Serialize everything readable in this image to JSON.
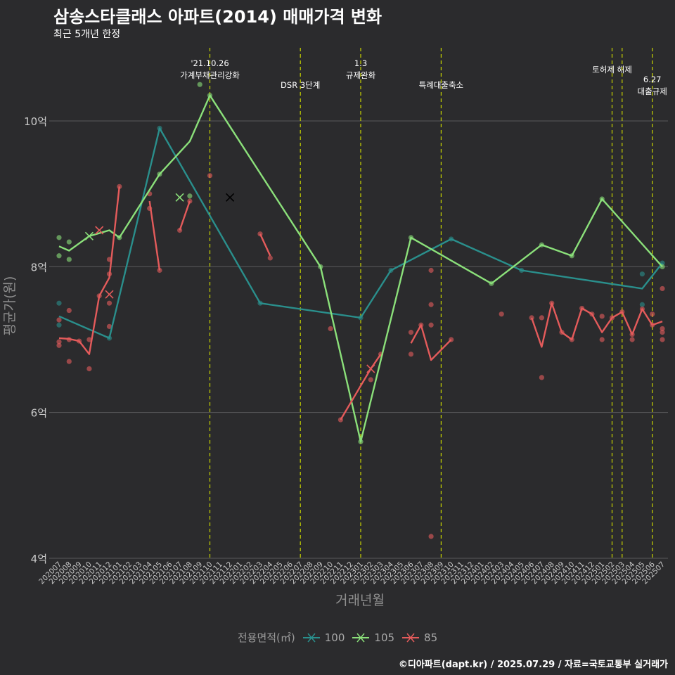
{
  "title": "삼송스타클래스 아파트(2014) 매매가격 변화",
  "subtitle": "최근 5개년 한정",
  "caption": "©디아파트(dapt.kr) / 2025.07.29 / 자료=국토교통부 실거래가",
  "legend": {
    "title": "전용면적(㎡)",
    "items": [
      {
        "label": "100",
        "color": "#2a8f8c"
      },
      {
        "label": "105",
        "color": "#8be07a"
      },
      {
        "label": "85",
        "color": "#e45b5b"
      }
    ]
  },
  "colors": {
    "background": "#2b2b2d",
    "grid": "#5a5a5c",
    "event_line": "#c8d400",
    "s100": "#2a8f8c",
    "s105": "#8be07a",
    "s85": "#e45b5b"
  },
  "chart_data": {
    "type": "line",
    "title": "삼송스타클래스 아파트(2014) 매매가격 변화",
    "xlabel": "거래년월",
    "ylabel": "평균가(원)",
    "ylim": [
      4,
      10.6
    ],
    "yticks": [
      {
        "value": 4,
        "label": "4억"
      },
      {
        "value": 6,
        "label": "6억"
      },
      {
        "value": 8,
        "label": "8억"
      },
      {
        "value": 10,
        "label": "10억"
      }
    ],
    "x_categories": [
      "202007",
      "202008",
      "202009",
      "202010",
      "202011",
      "202012",
      "202101",
      "202102",
      "202103",
      "202104",
      "202105",
      "202106",
      "202107",
      "202108",
      "202109",
      "202110",
      "202111",
      "202112",
      "202201",
      "202202",
      "202203",
      "202204",
      "202205",
      "202206",
      "202207",
      "202208",
      "202209",
      "202210",
      "202211",
      "202212",
      "202301",
      "202302",
      "202303",
      "202304",
      "202305",
      "202306",
      "202307",
      "202308",
      "202309",
      "202310",
      "202311",
      "202312",
      "202401",
      "202402",
      "202403",
      "202404",
      "202405",
      "202406",
      "202407",
      "202408",
      "202409",
      "202410",
      "202411",
      "202412",
      "202501",
      "202502",
      "202503",
      "202504",
      "202505",
      "202506",
      "202507"
    ],
    "events": [
      {
        "x": "202110",
        "label": "'21.10.26\n가계부채관리강화"
      },
      {
        "x": "202207",
        "label": "DSR 3단계"
      },
      {
        "x": "202301",
        "label": "1.3\n규제완화"
      },
      {
        "x": "202309",
        "label": "특례대출축소"
      },
      {
        "x": "202502",
        "label": "토허제 해제"
      },
      {
        "x": "202503",
        "label": ""
      },
      {
        "x": "202506",
        "label": "6.27\n대출규제"
      }
    ],
    "series": [
      {
        "name": "100",
        "line": [
          [
            "202007",
            7.32
          ],
          [
            "202012",
            7.02
          ],
          [
            "202105",
            9.9
          ],
          [
            "202203",
            7.5
          ],
          [
            "202301",
            7.3
          ],
          [
            "202304",
            7.95
          ],
          [
            "202310",
            8.38
          ],
          [
            "202405",
            7.95
          ],
          [
            "202505",
            7.7
          ],
          [
            "202507",
            8.05
          ]
        ],
        "points": [
          [
            "202007",
            7.5
          ],
          [
            "202007",
            7.2
          ],
          [
            "202012",
            7.02
          ],
          [
            "202105",
            9.9
          ],
          [
            "202203",
            7.5
          ],
          [
            "202301",
            7.3
          ],
          [
            "202304",
            7.95
          ],
          [
            "202310",
            8.38
          ],
          [
            "202405",
            7.95
          ],
          [
            "202505",
            7.9
          ],
          [
            "202505",
            7.48
          ],
          [
            "202507",
            8.05
          ]
        ],
        "markers_x": [
          [
            "202112",
            8.95
          ]
        ]
      },
      {
        "name": "105",
        "line": [
          [
            "202007",
            8.28
          ],
          [
            "202008",
            8.22
          ],
          [
            "202010",
            8.42
          ],
          [
            "202012",
            8.5
          ],
          [
            "202101",
            8.4
          ],
          [
            "202105",
            9.27
          ],
          [
            "202108",
            9.72
          ],
          [
            "202110",
            10.35
          ],
          [
            "202209",
            8.0
          ],
          [
            "202301",
            5.6
          ],
          [
            "202306",
            8.4
          ],
          [
            "202402",
            7.77
          ],
          [
            "202407",
            8.3
          ],
          [
            "202410",
            8.15
          ],
          [
            "202501",
            8.93
          ],
          [
            "202507",
            8.0
          ]
        ],
        "points": [
          [
            "202007",
            8.4
          ],
          [
            "202007",
            8.15
          ],
          [
            "202008",
            8.34
          ],
          [
            "202008",
            8.1
          ],
          [
            "202101",
            8.4
          ],
          [
            "202105",
            9.27
          ],
          [
            "202108",
            8.97
          ],
          [
            "202109",
            10.5
          ],
          [
            "202110",
            10.35
          ],
          [
            "202209",
            8.0
          ],
          [
            "202301",
            5.6
          ],
          [
            "202306",
            8.4
          ],
          [
            "202402",
            7.77
          ],
          [
            "202407",
            8.3
          ],
          [
            "202410",
            8.15
          ],
          [
            "202501",
            8.93
          ],
          [
            "202507",
            8.0
          ]
        ],
        "markers_x": [
          [
            "202010",
            8.42
          ],
          [
            "202107",
            8.95
          ]
        ]
      },
      {
        "name": "85",
        "segments": [
          [
            [
              "202007",
              7.02
            ],
            [
              "202008",
              7.01
            ],
            [
              "202009",
              6.98
            ],
            [
              "202010",
              6.8
            ],
            [
              "202011",
              7.6
            ],
            [
              "202012",
              7.85
            ],
            [
              "202101",
              9.1
            ]
          ],
          [
            [
              "202104",
              8.9
            ],
            [
              "202105",
              7.95
            ]
          ],
          [
            [
              "202107",
              8.5
            ],
            [
              "202108",
              8.9
            ]
          ],
          [
            [
              "202203",
              8.45
            ],
            [
              "202204",
              8.15
            ]
          ],
          [
            [
              "202211",
              5.9
            ],
            [
              "202302",
              6.6
            ],
            [
              "202303",
              6.8
            ]
          ],
          [
            [
              "202306",
              6.95
            ],
            [
              "202307",
              7.2
            ],
            [
              "202308",
              6.72
            ],
            [
              "202310",
              7.0
            ]
          ],
          [
            [
              "202406",
              7.3
            ],
            [
              "202407",
              6.9
            ],
            [
              "202408",
              7.5
            ],
            [
              "202409",
              7.1
            ],
            [
              "202410",
              7.0
            ],
            [
              "202411",
              7.43
            ],
            [
              "202412",
              7.35
            ],
            [
              "202501",
              7.1
            ],
            [
              "202502",
              7.3
            ],
            [
              "202503",
              7.38
            ],
            [
              "202504",
              7.07
            ],
            [
              "202505",
              7.42
            ],
            [
              "202506",
              7.2
            ],
            [
              "202507",
              7.25
            ]
          ]
        ],
        "points": [
          [
            "202007",
            7.27
          ],
          [
            "202007",
            6.97
          ],
          [
            "202007",
            6.92
          ],
          [
            "202008",
            7.4
          ],
          [
            "202008",
            7.0
          ],
          [
            "202008",
            6.7
          ],
          [
            "202009",
            6.98
          ],
          [
            "202010",
            7.0
          ],
          [
            "202010",
            6.6
          ],
          [
            "202011",
            7.6
          ],
          [
            "202012",
            8.1
          ],
          [
            "202012",
            7.9
          ],
          [
            "202012",
            7.5
          ],
          [
            "202012",
            7.18
          ],
          [
            "202101",
            9.1
          ],
          [
            "202104",
            9.0
          ],
          [
            "202104",
            8.8
          ],
          [
            "202105",
            7.95
          ],
          [
            "202107",
            8.5
          ],
          [
            "202108",
            8.9
          ],
          [
            "202110",
            9.25
          ],
          [
            "202203",
            8.45
          ],
          [
            "202204",
            8.12
          ],
          [
            "202210",
            7.15
          ],
          [
            "202211",
            5.9
          ],
          [
            "202302",
            6.45
          ],
          [
            "202303",
            6.8
          ],
          [
            "202306",
            7.1
          ],
          [
            "202306",
            6.8
          ],
          [
            "202307",
            7.2
          ],
          [
            "202308",
            7.95
          ],
          [
            "202308",
            7.48
          ],
          [
            "202308",
            7.2
          ],
          [
            "202308",
            4.3
          ],
          [
            "202310",
            7.0
          ],
          [
            "202403",
            7.35
          ],
          [
            "202406",
            7.3
          ],
          [
            "202407",
            7.3
          ],
          [
            "202407",
            6.48
          ],
          [
            "202408",
            7.5
          ],
          [
            "202409",
            7.1
          ],
          [
            "202410",
            7.0
          ],
          [
            "202411",
            7.43
          ],
          [
            "202412",
            7.35
          ],
          [
            "202501",
            7.32
          ],
          [
            "202501",
            7.0
          ],
          [
            "202502",
            7.3
          ],
          [
            "202503",
            7.38
          ],
          [
            "202504",
            7.07
          ],
          [
            "202504",
            7.0
          ],
          [
            "202505",
            7.42
          ],
          [
            "202506",
            7.35
          ],
          [
            "202506",
            7.2
          ],
          [
            "202507",
            7.7
          ],
          [
            "202507",
            7.15
          ],
          [
            "202507",
            7.1
          ],
          [
            "202507",
            7.0
          ]
        ],
        "markers_x": [
          [
            "202011",
            8.5
          ],
          [
            "202012",
            7.62
          ],
          [
            "202302",
            6.6
          ]
        ]
      }
    ]
  }
}
